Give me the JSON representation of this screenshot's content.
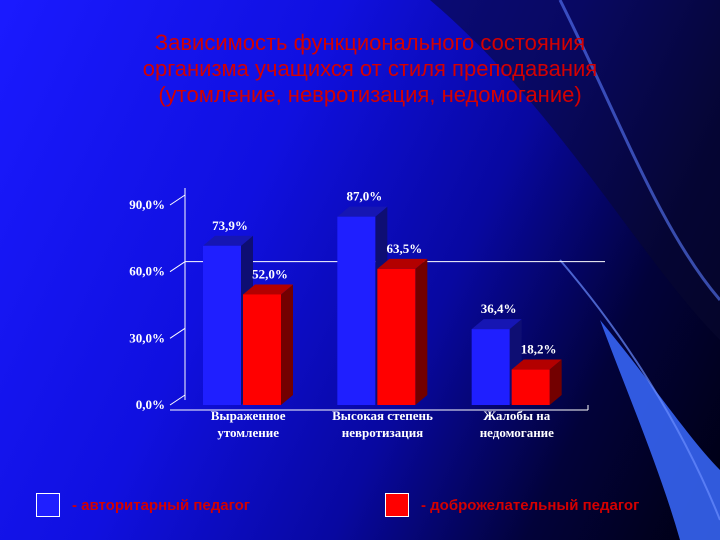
{
  "title_lines": [
    "Зависимость функционального состояния",
    "организма учащихся от стиля преподавания",
    "(утомление, невротизация, недомогание)"
  ],
  "chart_data": {
    "type": "bar",
    "categories": [
      [
        "Выраженное",
        "утомление"
      ],
      [
        "Высокая степень",
        "невротизация"
      ],
      [
        "Жалобы на",
        "недомогание"
      ]
    ],
    "series": [
      {
        "name": "авторитарный педагог",
        "values": [
          73.9,
          87.0,
          36.4
        ],
        "labels": [
          "73,9%",
          "87,0%",
          "36,4%"
        ],
        "color": "#1f1fff"
      },
      {
        "name": "доброжелательный педагог",
        "values": [
          52.0,
          63.5,
          18.2
        ],
        "labels": [
          "52,0%",
          "63,5%",
          "18,2%"
        ],
        "color": "#ff0000"
      }
    ],
    "y_ticks": [
      {
        "value": 0,
        "label": "0,0%"
      },
      {
        "value": 30,
        "label": "30,0%"
      },
      {
        "value": 60,
        "label": "60,0%"
      },
      {
        "value": 90,
        "label": "90,0%"
      }
    ],
    "ylim": [
      0,
      90
    ]
  },
  "legend": {
    "items": [
      {
        "label": "- авторитарный педагог",
        "color": "#1f1fff"
      },
      {
        "label": "- доброжелательный педагог",
        "color": "#ff0000"
      }
    ]
  }
}
